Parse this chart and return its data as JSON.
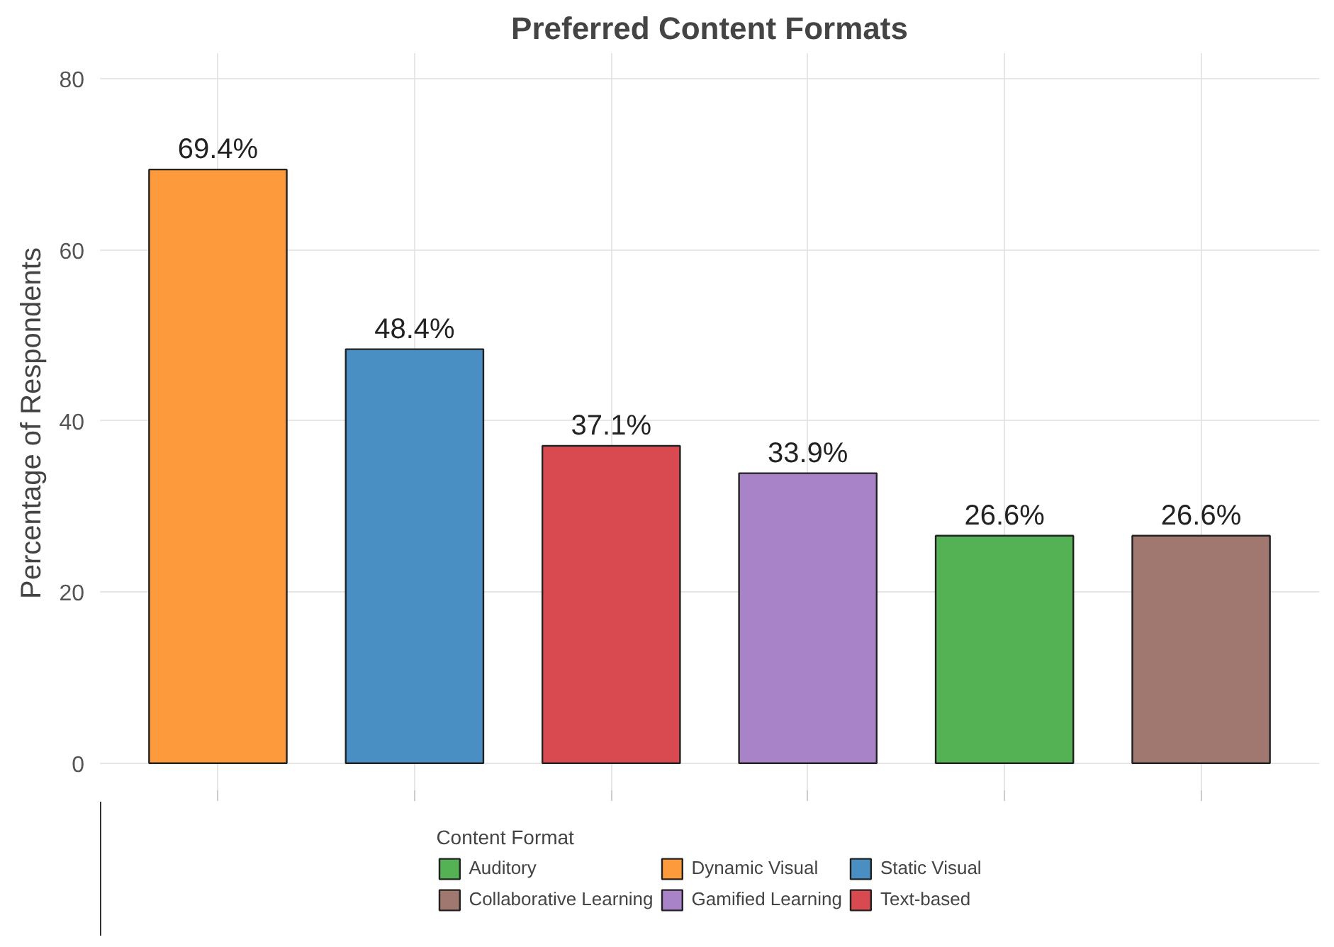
{
  "chart_data": {
    "type": "bar",
    "title": "Preferred Content Formats",
    "ylabel": "Percentage of Respondents",
    "legend_title": "Content Format",
    "categories": [
      null,
      null,
      null,
      null,
      null,
      null
    ],
    "series": [
      {
        "name": "Auditory",
        "color": "#54b254",
        "values": [
          null,
          null,
          null,
          null,
          26.6,
          null
        ],
        "value_labels": [
          null,
          null,
          null,
          null,
          "26.6%",
          null
        ]
      },
      {
        "name": "Collaborative Learning",
        "color": "#a07870",
        "values": [
          null,
          null,
          null,
          null,
          null,
          26.6
        ],
        "value_labels": [
          null,
          null,
          null,
          null,
          null,
          "26.6%"
        ]
      },
      {
        "name": "Dynamic Visual",
        "color": "#fd9a3c",
        "values": [
          69.4,
          null,
          null,
          null,
          null,
          null
        ],
        "value_labels": [
          "69.4%",
          null,
          null,
          null,
          null,
          null
        ]
      },
      {
        "name": "Gamified Learning",
        "color": "#a883c8",
        "values": [
          null,
          null,
          null,
          33.9,
          null,
          null
        ],
        "value_labels": [
          null,
          null,
          null,
          "33.9%",
          null,
          null
        ]
      },
      {
        "name": "Static Visual",
        "color": "#4a8fc4",
        "values": [
          null,
          48.4,
          null,
          null,
          null,
          null
        ],
        "value_labels": [
          null,
          "48.4%",
          null,
          null,
          null,
          null
        ]
      },
      {
        "name": "Text-based",
        "color": "#d94a50",
        "values": [
          null,
          null,
          37.1,
          null,
          null,
          null
        ],
        "value_labels": [
          null,
          null,
          "37.1%",
          null,
          null,
          null
        ]
      }
    ],
    "ylim": [
      -3.5,
      83
    ],
    "yticks": [
      0,
      20,
      40,
      60,
      80
    ],
    "grid": true,
    "legend": "bottom",
    "tick_labels": "y"
  }
}
